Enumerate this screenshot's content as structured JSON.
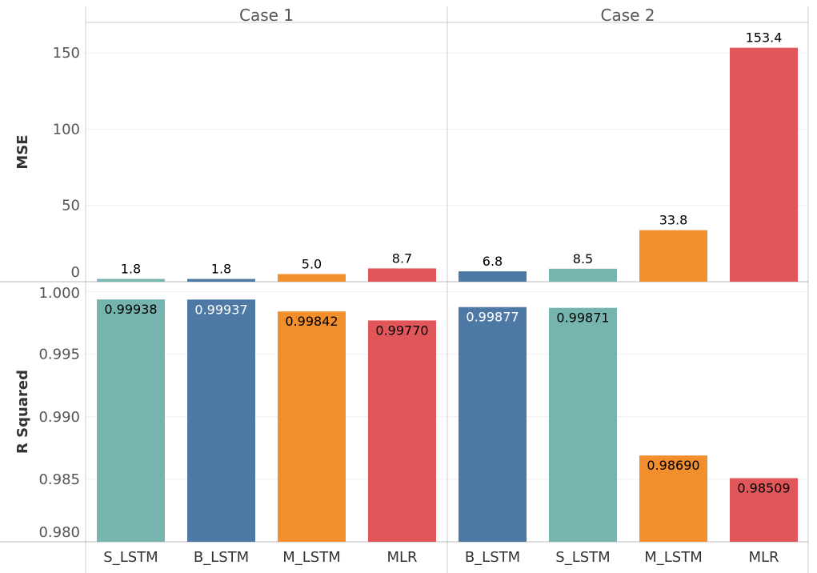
{
  "chart_data": {
    "type": "bar",
    "panels": [
      "Case 1",
      "Case 2"
    ],
    "categories": [
      [
        "S_LSTM",
        "B_LSTM",
        "M_LSTM",
        "MLR"
      ],
      [
        "B_LSTM",
        "S_LSTM",
        "M_LSTM",
        "MLR"
      ]
    ],
    "colors": {
      "S_LSTM": "#76b5af",
      "B_LSTM": "#4e79a5",
      "M_LSTM": "#f28e2b",
      "MLR": "#e15759"
    },
    "rows": [
      {
        "measure": "MSE",
        "ylabel": "MSE",
        "ylim": [
          0,
          170
        ],
        "ticks": [
          0,
          50,
          100,
          150
        ],
        "tick_labels": [
          "0",
          "50",
          "100",
          "150"
        ],
        "values": [
          [
            1.8,
            1.8,
            5.0,
            8.7
          ],
          [
            6.8,
            8.5,
            33.8,
            153.4
          ]
        ],
        "value_labels": [
          [
            "1.8",
            "1.8",
            "5.0",
            "8.7"
          ],
          [
            "6.8",
            "8.5",
            "33.8",
            "153.4"
          ]
        ],
        "label_position": "outside"
      },
      {
        "measure": "R Squared",
        "ylabel": "R Squared",
        "ylim": [
          0.98,
          1.0008
        ],
        "ticks": [
          0.98,
          0.985,
          0.99,
          0.995,
          1.0
        ],
        "tick_labels": [
          "0.980",
          "0.985",
          "0.990",
          "0.995",
          "1.000"
        ],
        "values": [
          [
            0.99938,
            0.99937,
            0.99842,
            0.9977
          ],
          [
            0.99877,
            0.99871,
            0.9869,
            0.98509
          ]
        ],
        "value_labels": [
          [
            "0.99938",
            "0.99937",
            "0.99842",
            "0.99770"
          ],
          [
            "0.99877",
            "0.99871",
            "0.98690",
            "0.98509"
          ]
        ],
        "label_position": "inside-top",
        "label_colors": [
          [
            "#000000",
            "#ffffff",
            "#000000",
            "#000000"
          ],
          [
            "#ffffff",
            "#000000",
            "#000000",
            "#000000"
          ]
        ]
      }
    ],
    "grid": true,
    "legend": "none"
  }
}
